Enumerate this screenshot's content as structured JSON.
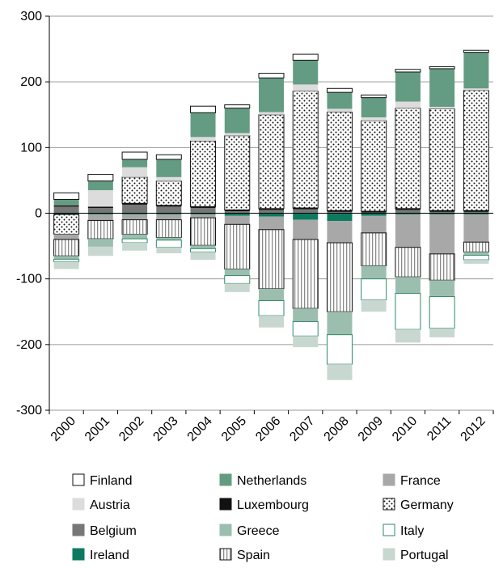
{
  "chart_data": {
    "type": "bar",
    "stacked": true,
    "categories": [
      "2000",
      "2001",
      "2002",
      "2003",
      "2004",
      "2005",
      "2006",
      "2007",
      "2008",
      "2009",
      "2010",
      "2011",
      "2012"
    ],
    "ylim": [
      -300,
      300
    ],
    "yticks": [
      -300,
      -200,
      -100,
      0,
      100,
      200,
      300
    ],
    "ytick_labels": [
      "-300",
      "-200",
      "-100",
      "0",
      "100",
      "200",
      "300"
    ],
    "grid": true,
    "legend_position": "bottom",
    "series": [
      {
        "name": "Belgium",
        "color": "#777777",
        "pattern": "solid",
        "values": [
          10,
          8,
          13,
          10,
          8,
          3,
          5,
          6,
          2,
          1,
          5,
          2,
          2
        ]
      },
      {
        "name": "Ireland",
        "color": "#0d7a5f",
        "pattern": "solid",
        "values": [
          -2,
          -2,
          -2,
          -2,
          -2,
          -4,
          -5,
          -10,
          -12,
          -4,
          -2,
          -2,
          -2
        ]
      },
      {
        "name": "Luxembourg",
        "color": "#111111",
        "pattern": "solid",
        "values": [
          2,
          2,
          2,
          2,
          2,
          2,
          2,
          2,
          2,
          2,
          2,
          2,
          2
        ]
      },
      {
        "name": "Germany",
        "color": "#ffffff",
        "pattern": "dots",
        "values": [
          -30,
          0,
          40,
          37,
          100,
          113,
          143,
          178,
          150,
          138,
          153,
          155,
          183
        ]
      },
      {
        "name": "Austria",
        "color": "#dcdcdc",
        "pattern": "solid",
        "values": [
          0,
          25,
          15,
          6,
          6,
          4,
          4,
          10,
          5,
          5,
          10,
          3,
          3
        ]
      },
      {
        "name": "Netherlands",
        "color": "#649c83",
        "pattern": "solid",
        "values": [
          9,
          14,
          12,
          27,
          37,
          38,
          52,
          37,
          25,
          30,
          45,
          58,
          55
        ]
      },
      {
        "name": "Finland",
        "color": "#ffffff",
        "pattern": "solid",
        "values": [
          10,
          10,
          11,
          7,
          10,
          5,
          7,
          9,
          6,
          4,
          4,
          3,
          3
        ]
      },
      {
        "name": "France",
        "color": "#a8a8a8",
        "pattern": "solid",
        "values": [
          -8,
          -9,
          -8,
          -8,
          -5,
          -13,
          -20,
          -30,
          -33,
          -26,
          -50,
          -60,
          -42
        ]
      },
      {
        "name": "Spain",
        "color": "#ffffff",
        "pattern": "vlines",
        "values": [
          -25,
          -28,
          -22,
          -27,
          -42,
          -68,
          -90,
          -105,
          -105,
          -50,
          -45,
          -40,
          -15
        ]
      },
      {
        "name": "Greece",
        "color": "#9cbeaf",
        "pattern": "solid",
        "values": [
          -5,
          -12,
          -7,
          -4,
          -5,
          -10,
          -18,
          -20,
          -35,
          -20,
          -25,
          -25,
          -5
        ]
      },
      {
        "name": "Italy",
        "color": "#ffffff",
        "pattern": "solid",
        "values": [
          -4,
          0,
          -6,
          -11,
          -5,
          -12,
          -23,
          -22,
          -45,
          -32,
          -55,
          -48,
          -7
        ]
      },
      {
        "name": "Portugal",
        "color": "#c8d8d1",
        "pattern": "solid",
        "values": [
          -11,
          -14,
          -12,
          -9,
          -12,
          -13,
          -18,
          -17,
          -24,
          -18,
          -20,
          -14,
          -6
        ]
      }
    ],
    "legend": [
      [
        "Finland",
        "Netherlands",
        "France"
      ],
      [
        "Austria",
        "Luxembourg",
        "Germany"
      ],
      [
        "Belgium",
        "Greece",
        "Italy"
      ],
      [
        "Ireland",
        "Spain",
        "Portugal"
      ]
    ]
  }
}
